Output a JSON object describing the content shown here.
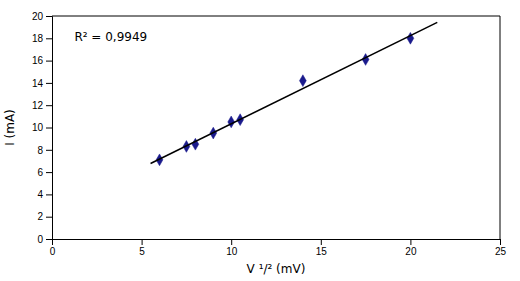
{
  "chart_data": {
    "type": "scatter",
    "xlabel": "V ¹/² (mV)",
    "ylabel": "I (mA)",
    "annotation": "R² = 0,9949",
    "xlim": [
      0,
      25
    ],
    "ylim": [
      0,
      20
    ],
    "xticks": [
      0,
      5,
      10,
      15,
      20,
      25
    ],
    "yticks": [
      0,
      2,
      4,
      6,
      8,
      10,
      12,
      14,
      16,
      18,
      20
    ],
    "grid": false,
    "series": [
      {
        "type": "scatter",
        "marker": "diamond",
        "color": "#1a1a8c",
        "x": [
          6.0,
          7.5,
          8.0,
          9.0,
          10.0,
          10.5,
          14.0,
          17.5,
          20.0
        ],
        "values": [
          7.1,
          8.3,
          8.5,
          9.5,
          10.5,
          10.7,
          14.2,
          16.1,
          18.0
        ]
      },
      {
        "type": "line",
        "line_style": "solid",
        "color": "#000000",
        "x": [
          5.5,
          21.5
        ],
        "values": [
          6.7732,
          19.4348
        ]
      }
    ]
  }
}
